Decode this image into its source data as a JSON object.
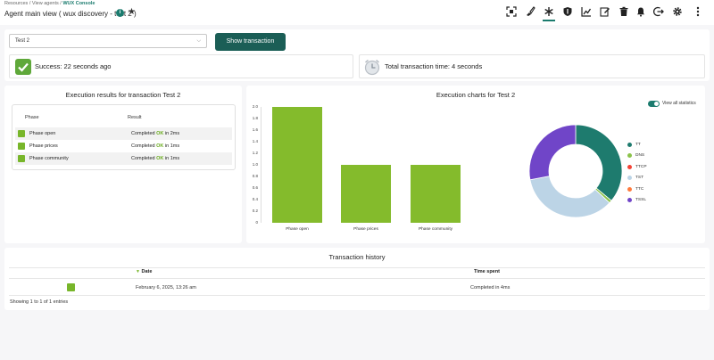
{
  "breadcrumb": {
    "items": [
      "Resources",
      "View agents"
    ],
    "separator": "/",
    "current": "WUX Console"
  },
  "page": {
    "title": "Agent main view ( wux discovery - test 2 )"
  },
  "toolbar": {
    "icons": [
      "screenshot-icon",
      "brush-icon",
      "asterisk-icon",
      "shield-icon",
      "chart-icon",
      "edit-icon",
      "trash-icon",
      "bell-icon",
      "logout-icon",
      "gear-icon",
      "kebab-menu-icon"
    ],
    "active": "asterisk-icon"
  },
  "controls": {
    "select_value": "Test 2",
    "show_button": "Show transaction"
  },
  "status": {
    "success": "Success: 22 seconds ago",
    "total_time": "Total transaction time: 4 seconds"
  },
  "results": {
    "title": "Execution results for transaction Test 2",
    "headers": {
      "phase": "Phase",
      "result": "Result"
    },
    "rows": [
      {
        "phase": "Phase open",
        "pre": "Completed ",
        "ok": "OK",
        "post": " in 2ms"
      },
      {
        "phase": "Phase prices",
        "pre": "Completed ",
        "ok": "OK",
        "post": " in 1ms"
      },
      {
        "phase": "Phase community",
        "pre": "Completed ",
        "ok": "OK",
        "post": " in 1ms"
      }
    ]
  },
  "charts": {
    "title": "Execution charts for Test 2",
    "toggle_label": "View all statistics",
    "toggle_on": true
  },
  "chart_data": [
    {
      "type": "bar",
      "categories": [
        "Phase open",
        "Phase prices",
        "Phase community"
      ],
      "values": [
        2.0,
        1.0,
        1.0
      ],
      "ylim": [
        0,
        2.0
      ],
      "yticks": [
        "2.0",
        "1.8",
        "1.6",
        "1.4",
        "1.2",
        "1.0",
        "0.8",
        "0.6",
        "0.4",
        "0.2",
        "0"
      ],
      "color": "#84bb2c",
      "title": "",
      "xlabel": "",
      "ylabel": ""
    },
    {
      "type": "pie",
      "donut": true,
      "labels": [
        "TT",
        "DNS",
        "TTCP",
        "TST",
        "TTC",
        "TSSL"
      ],
      "values": [
        36,
        1,
        0,
        35,
        0,
        28
      ],
      "colors": [
        "#1e7b6e",
        "#8bc34a",
        "#f44336",
        "#bcd4e6",
        "#ff7a3d",
        "#7045c8"
      ]
    }
  ],
  "history": {
    "title": "Transaction history",
    "headers": {
      "date": "Date",
      "time": "Time spent"
    },
    "rows": [
      {
        "date": "February 6, 2025, 13:26 am",
        "time": "Completed in 4ms"
      }
    ],
    "footer": "Showing 1 to 1 of 1 entries"
  }
}
